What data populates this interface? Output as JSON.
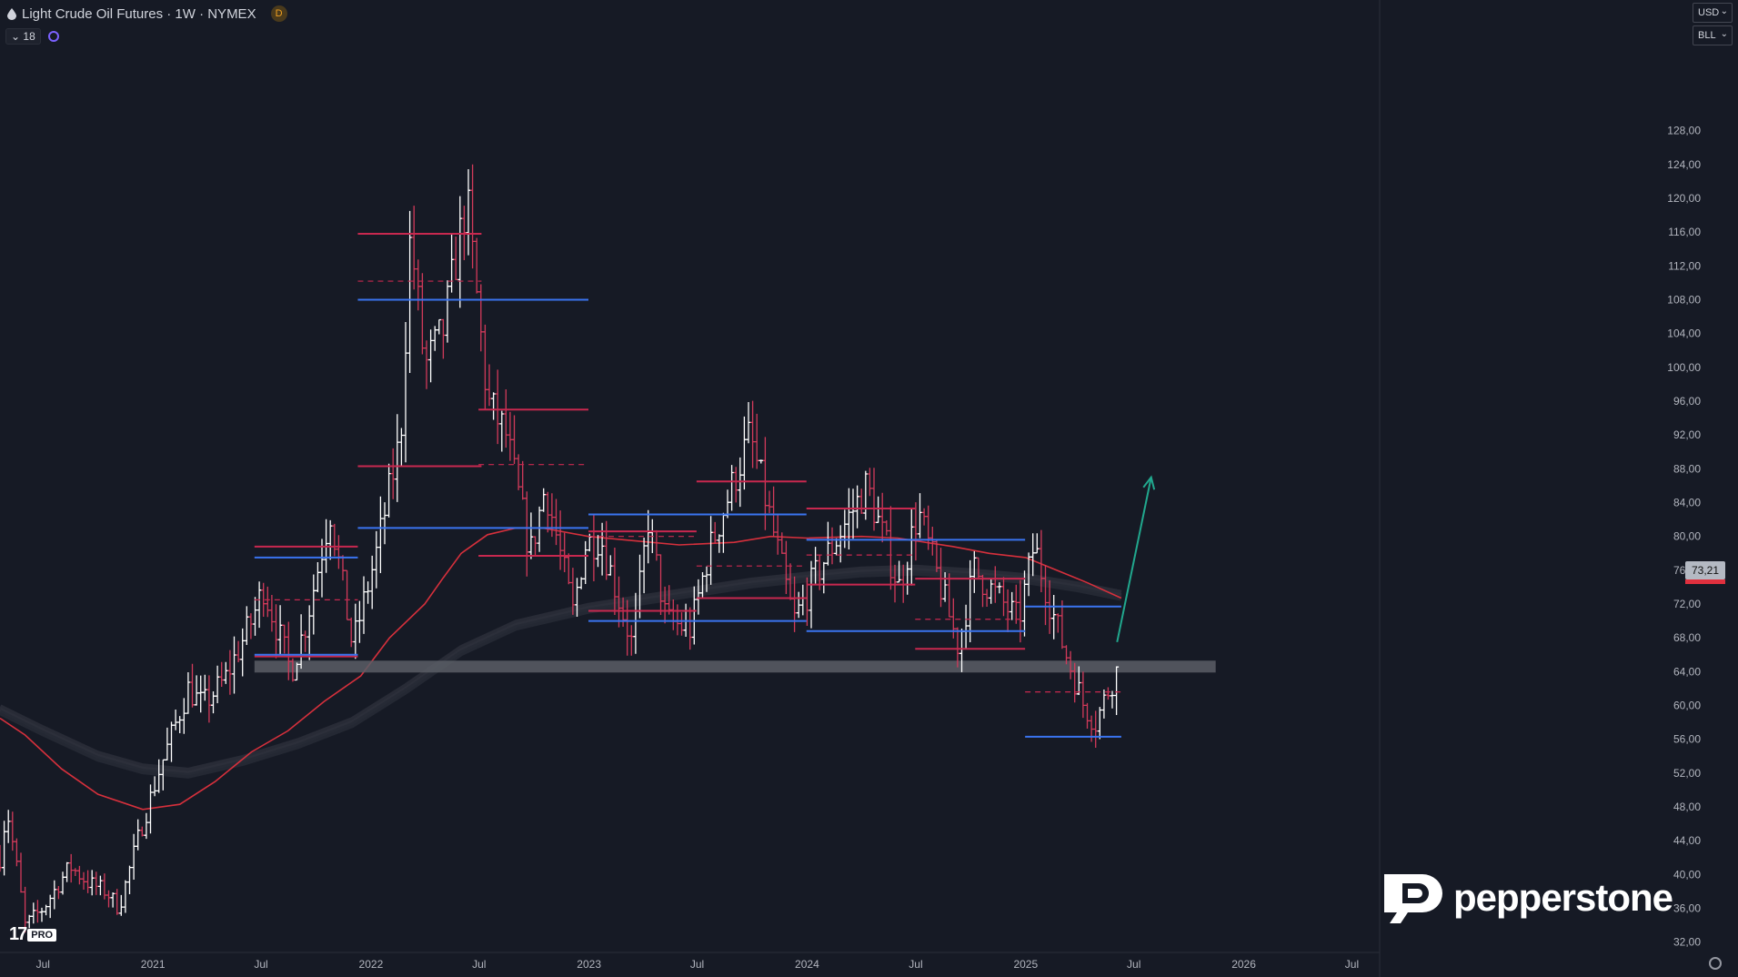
{
  "header": {
    "title": "Light Crude Oil Futures · 1W · NYMEX",
    "badge": "D",
    "indicator_count": "18"
  },
  "scale_controls": {
    "currency": "USD",
    "unit": "BLL"
  },
  "current_price_label": "73,21",
  "logos": {
    "tv_text": "17",
    "tv_pro": "PRO",
    "broker": "pepperstone"
  },
  "colors": {
    "background": "#161a25",
    "bar_up": "#ffffff",
    "bar_down": "#d23a5a",
    "red_level": "#c8284f",
    "blue_level": "#3a74f0",
    "ma_red": "#d6303c",
    "support_band": "#5b5e66",
    "arrow": "#21a88e"
  },
  "chart_data": {
    "type": "ohlc",
    "title": "",
    "xlabel": "",
    "ylabel": "",
    "y_range": [
      31,
      137
    ],
    "y_ticks": [
      "128,00",
      "124,00",
      "120,00",
      "116,00",
      "112,00",
      "108,00",
      "104,00",
      "100,00",
      "96,00",
      "92,00",
      "88,00",
      "84,00",
      "80,00",
      "76,00",
      "72,00",
      "68,00",
      "64,00",
      "60,00",
      "56,00",
      "52,00",
      "48,00",
      "44,00",
      "40,00",
      "36,00",
      "32,00"
    ],
    "x_range": [
      "2020-04-20",
      "2026-08-15"
    ],
    "x_ticks": [
      {
        "date": "2020-07-01",
        "label": "Jul"
      },
      {
        "date": "2021-01-01",
        "label": "2021"
      },
      {
        "date": "2021-07-01",
        "label": "Jul"
      },
      {
        "date": "2022-01-01",
        "label": "2022"
      },
      {
        "date": "2022-07-01",
        "label": "Jul"
      },
      {
        "date": "2023-01-01",
        "label": "2023"
      },
      {
        "date": "2023-07-01",
        "label": "Jul"
      },
      {
        "date": "2024-01-01",
        "label": "2024"
      },
      {
        "date": "2024-07-01",
        "label": "Jul"
      },
      {
        "date": "2025-01-01",
        "label": "2025"
      },
      {
        "date": "2025-07-01",
        "label": "Jul"
      },
      {
        "date": "2026-01-01",
        "label": "2026"
      },
      {
        "date": "2026-07-01",
        "label": "Jul"
      }
    ],
    "price_anchors": [
      [
        "2020-04-20",
        42
      ],
      [
        "2020-05-01",
        48
      ],
      [
        "2020-05-20",
        40
      ],
      [
        "2020-06-01",
        34
      ],
      [
        "2020-07-01",
        36
      ],
      [
        "2020-08-15",
        41
      ],
      [
        "2020-09-15",
        39
      ],
      [
        "2020-10-15",
        38
      ],
      [
        "2020-11-05",
        36
      ],
      [
        "2020-12-10",
        45
      ],
      [
        "2021-01-10",
        52
      ],
      [
        "2021-03-01",
        62
      ],
      [
        "2021-03-25",
        60
      ],
      [
        "2021-05-01",
        63
      ],
      [
        "2021-06-15",
        70
      ],
      [
        "2021-07-05",
        74
      ],
      [
        "2021-08-20",
        64
      ],
      [
        "2021-09-15",
        70
      ],
      [
        "2021-10-25",
        83
      ],
      [
        "2021-12-01",
        67
      ],
      [
        "2022-01-10",
        78
      ],
      [
        "2022-02-20",
        92
      ],
      [
        "2022-03-08",
        116
      ],
      [
        "2022-04-01",
        100
      ],
      [
        "2022-05-01",
        104
      ],
      [
        "2022-06-10",
        120
      ],
      [
        "2022-07-15",
        96
      ],
      [
        "2022-08-15",
        92
      ],
      [
        "2022-09-25",
        78
      ],
      [
        "2022-10-20",
        86
      ],
      [
        "2022-12-05",
        71
      ],
      [
        "2022-12-25",
        79
      ],
      [
        "2023-01-20",
        80
      ],
      [
        "2023-03-15",
        67
      ],
      [
        "2023-04-10",
        82
      ],
      [
        "2023-05-10",
        70
      ],
      [
        "2023-06-20",
        69
      ],
      [
        "2023-07-20",
        78
      ],
      [
        "2023-09-27",
        92
      ],
      [
        "2023-10-25",
        84
      ],
      [
        "2023-12-10",
        70
      ],
      [
        "2024-01-20",
        76
      ],
      [
        "2024-04-10",
        86
      ],
      [
        "2024-06-03",
        74
      ],
      [
        "2024-07-05",
        83
      ],
      [
        "2024-09-10",
        67
      ],
      [
        "2024-10-07",
        76
      ],
      [
        "2024-12-20",
        70
      ],
      [
        "2025-01-15",
        79
      ],
      [
        "2025-02-15",
        71
      ],
      [
        "2025-03-05",
        67
      ],
      [
        "2025-04-08",
        60
      ],
      [
        "2025-04-28",
        58
      ],
      [
        "2025-05-20",
        62
      ],
      [
        "2025-06-02",
        64
      ]
    ],
    "annotations": {
      "support_band": {
        "x_from": "2021-06-20",
        "x_to": "2025-11-15",
        "y_from": 63.9,
        "y_to": 65.3
      },
      "red_levels": [
        {
          "x_from": "2021-06-20",
          "x_to": "2021-12-10",
          "y": 78.8
        },
        {
          "x_from": "2021-06-20",
          "x_to": "2021-12-10",
          "y": 72.5,
          "dashed": true
        },
        {
          "x_from": "2021-06-20",
          "x_to": "2021-12-10",
          "y": 65.8
        },
        {
          "x_from": "2021-12-10",
          "x_to": "2022-07-05",
          "y": 115.8
        },
        {
          "x_from": "2021-12-10",
          "x_to": "2022-07-05",
          "y": 110.2,
          "dashed": true
        },
        {
          "x_from": "2021-12-10",
          "x_to": "2022-07-05",
          "y": 88.3
        },
        {
          "x_from": "2022-06-30",
          "x_to": "2022-12-31",
          "y": 95.0
        },
        {
          "x_from": "2022-06-30",
          "x_to": "2022-12-31",
          "y": 88.5,
          "dashed": true
        },
        {
          "x_from": "2022-06-30",
          "x_to": "2022-12-31",
          "y": 77.7
        },
        {
          "x_from": "2022-12-31",
          "x_to": "2023-06-30",
          "y": 80.6
        },
        {
          "x_from": "2022-12-31",
          "x_to": "2023-06-30",
          "y": 80.0,
          "dashed": true
        },
        {
          "x_from": "2022-12-31",
          "x_to": "2023-06-30",
          "y": 71.2
        },
        {
          "x_from": "2023-06-30",
          "x_to": "2023-12-31",
          "y": 86.5
        },
        {
          "x_from": "2023-06-30",
          "x_to": "2023-12-31",
          "y": 76.5,
          "dashed": true
        },
        {
          "x_from": "2023-06-30",
          "x_to": "2023-12-31",
          "y": 72.7
        },
        {
          "x_from": "2023-12-31",
          "x_to": "2024-06-30",
          "y": 83.3
        },
        {
          "x_from": "2023-12-31",
          "x_to": "2024-06-30",
          "y": 77.8,
          "dashed": true
        },
        {
          "x_from": "2023-12-31",
          "x_to": "2024-06-30",
          "y": 74.3
        },
        {
          "x_from": "2024-06-30",
          "x_to": "2024-12-31",
          "y": 75.0
        },
        {
          "x_from": "2024-06-30",
          "x_to": "2024-12-31",
          "y": 70.2,
          "dashed": true
        },
        {
          "x_from": "2024-06-30",
          "x_to": "2024-12-31",
          "y": 66.7
        },
        {
          "x_from": "2024-12-31",
          "x_to": "2025-06-10",
          "y": 61.6,
          "dashed": true
        }
      ],
      "blue_levels": [
        {
          "x_from": "2021-06-20",
          "x_to": "2021-12-10",
          "y": 77.5
        },
        {
          "x_from": "2021-06-20",
          "x_to": "2021-12-10",
          "y": 66.0
        },
        {
          "x_from": "2021-12-10",
          "x_to": "2022-12-31",
          "y": 108.0
        },
        {
          "x_from": "2021-12-10",
          "x_to": "2022-12-31",
          "y": 81.0
        },
        {
          "x_from": "2022-12-31",
          "x_to": "2023-12-31",
          "y": 82.6
        },
        {
          "x_from": "2022-12-31",
          "x_to": "2023-12-31",
          "y": 70.0
        },
        {
          "x_from": "2023-12-31",
          "x_to": "2024-12-31",
          "y": 79.6
        },
        {
          "x_from": "2023-12-31",
          "x_to": "2024-12-31",
          "y": 68.8
        },
        {
          "x_from": "2024-12-31",
          "x_to": "2025-06-10",
          "y": 71.7
        },
        {
          "x_from": "2024-12-31",
          "x_to": "2025-06-10",
          "y": 56.3
        }
      ],
      "ma_red": [
        [
          "2020-04-20",
          58.5
        ],
        [
          "2020-06-01",
          56.5
        ],
        [
          "2020-08-01",
          52.5
        ],
        [
          "2020-10-01",
          49.5
        ],
        [
          "2020-12-15",
          47.7
        ],
        [
          "2021-02-15",
          48.3
        ],
        [
          "2021-04-15",
          51.0
        ],
        [
          "2021-06-15",
          54.5
        ],
        [
          "2021-08-15",
          57.0
        ],
        [
          "2021-10-15",
          60.5
        ],
        [
          "2021-12-15",
          63.5
        ],
        [
          "2022-02-01",
          68.0
        ],
        [
          "2022-04-01",
          72.0
        ],
        [
          "2022-05-01",
          75.0
        ],
        [
          "2022-06-01",
          78.0
        ],
        [
          "2022-07-15",
          80.2
        ],
        [
          "2022-09-01",
          81.0
        ],
        [
          "2022-10-15",
          81.0
        ],
        [
          "2022-12-31",
          80.0
        ],
        [
          "2023-03-01",
          79.6
        ],
        [
          "2023-06-01",
          79.0
        ],
        [
          "2023-09-01",
          79.3
        ],
        [
          "2023-11-01",
          80.0
        ],
        [
          "2024-01-01",
          79.8
        ],
        [
          "2024-04-01",
          80.0
        ],
        [
          "2024-06-01",
          79.8
        ],
        [
          "2024-09-01",
          78.8
        ],
        [
          "2024-11-01",
          78.0
        ],
        [
          "2025-01-01",
          77.5
        ],
        [
          "2025-03-01",
          75.8
        ],
        [
          "2025-04-15",
          74.5
        ],
        [
          "2025-06-10",
          72.7
        ]
      ],
      "ma_gray": [
        [
          "2020-04-20",
          59.5
        ],
        [
          "2020-07-01",
          57.0
        ],
        [
          "2020-10-01",
          54.0
        ],
        [
          "2020-12-15",
          52.5
        ],
        [
          "2021-03-01",
          52.0
        ],
        [
          "2021-06-01",
          53.5
        ],
        [
          "2021-09-01",
          55.5
        ],
        [
          "2021-12-01",
          58.0
        ],
        [
          "2022-03-01",
          62.0
        ],
        [
          "2022-06-01",
          66.5
        ],
        [
          "2022-09-01",
          69.5
        ],
        [
          "2022-12-31",
          71.5
        ],
        [
          "2023-04-01",
          72.5
        ],
        [
          "2023-07-01",
          73.5
        ],
        [
          "2023-10-01",
          74.5
        ],
        [
          "2024-01-01",
          75.2
        ],
        [
          "2024-04-01",
          75.8
        ],
        [
          "2024-07-01",
          76.0
        ],
        [
          "2024-10-01",
          75.6
        ],
        [
          "2025-01-01",
          75.0
        ],
        [
          "2025-04-01",
          74.0
        ],
        [
          "2025-06-10",
          73.0
        ]
      ],
      "arrow": {
        "from": [
          "2025-06-03",
          67.5
        ],
        "to": [
          "2025-07-30",
          87.0
        ]
      }
    }
  }
}
